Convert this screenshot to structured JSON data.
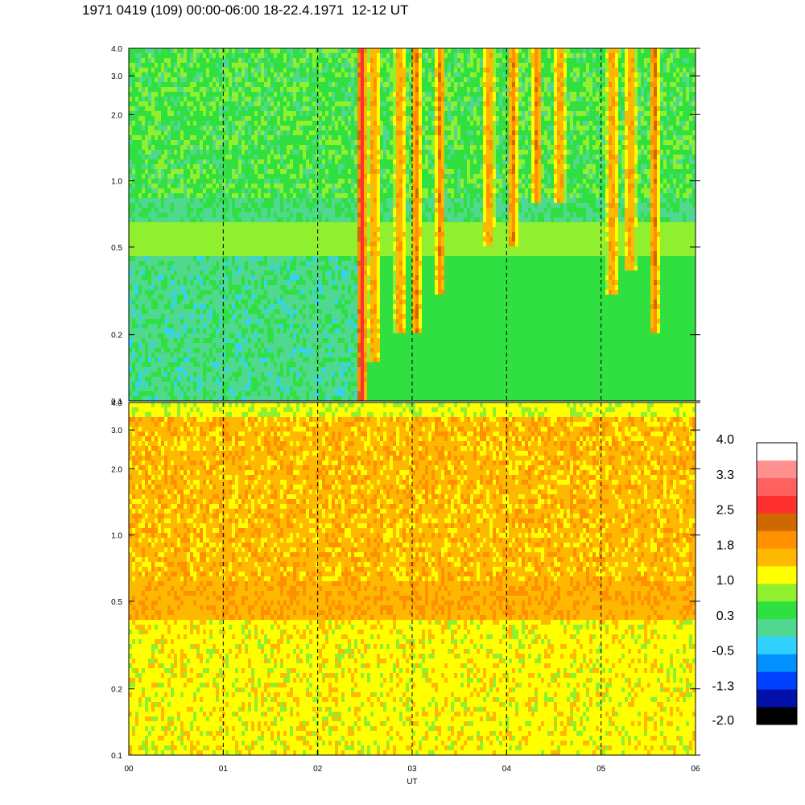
{
  "title": "1971 0419 (109) 00:00-06:00 18-22.4.1971  12-12 UT",
  "colors": {
    "scale": [
      "#000000",
      "#0010a8",
      "#0040ff",
      "#0090ff",
      "#30d0ff",
      "#50d890",
      "#30e040",
      "#90f030",
      "#ffff00",
      "#ffb800",
      "#ff9000",
      "#d06800",
      "#ff3030",
      "#ff6060",
      "#ff9090",
      "#ffffff"
    ],
    "dashed_lines": "#000000",
    "axis": "#000000"
  },
  "chart_data": [
    {
      "type": "heatmap",
      "panel": "top",
      "xlabel": "",
      "ylabel": "",
      "x_range": [
        0,
        6
      ],
      "y_range": [
        0.1,
        4.0
      ],
      "y_scale": "log",
      "y_ticks": [
        {
          "value": 0.1,
          "label": "0.1"
        },
        {
          "value": 0.2,
          "label": "0.2"
        },
        {
          "value": 0.5,
          "label": "0.5"
        },
        {
          "value": 1.0,
          "label": "1.0"
        },
        {
          "value": 2.0,
          "label": "2.0"
        },
        {
          "value": 3.0,
          "label": "3.0"
        },
        {
          "value": 4.0,
          "label": "4.0"
        }
      ],
      "dashed_vertical_lines_at": [
        1,
        2,
        3,
        4,
        5
      ],
      "background_level": "green/cyan",
      "bursts": [
        {
          "x": 2.45,
          "ymin": 0.1,
          "ymax": 4.0,
          "peak_level": "red"
        },
        {
          "x": 2.58,
          "ymin": 0.15,
          "ymax": 4.0,
          "peak_level": "orange"
        },
        {
          "x": 2.85,
          "ymin": 0.2,
          "ymax": 4.0,
          "peak_level": "orange"
        },
        {
          "x": 3.03,
          "ymin": 0.2,
          "ymax": 4.0,
          "peak_level": "orange"
        },
        {
          "x": 3.28,
          "ymin": 0.3,
          "ymax": 4.0,
          "peak_level": "orange"
        },
        {
          "x": 3.8,
          "ymin": 0.5,
          "ymax": 4.0,
          "peak_level": "orange"
        },
        {
          "x": 4.05,
          "ymin": 0.5,
          "ymax": 4.0,
          "peak_level": "orange"
        },
        {
          "x": 4.3,
          "ymin": 0.8,
          "ymax": 4.0,
          "peak_level": "orange"
        },
        {
          "x": 4.55,
          "ymin": 0.8,
          "ymax": 4.0,
          "peak_level": "orange"
        },
        {
          "x": 5.1,
          "ymin": 0.3,
          "ymax": 4.0,
          "peak_level": "orange"
        },
        {
          "x": 5.3,
          "ymin": 0.4,
          "ymax": 4.0,
          "peak_level": "orange"
        },
        {
          "x": 5.55,
          "ymin": 0.2,
          "ymax": 4.0,
          "peak_level": "orange"
        }
      ]
    },
    {
      "type": "heatmap",
      "panel": "bottom",
      "xlabel": "UT",
      "ylabel": "",
      "x_range": [
        0,
        6
      ],
      "x_ticks": [
        {
          "value": 0,
          "label": "00"
        },
        {
          "value": 1,
          "label": "01"
        },
        {
          "value": 2,
          "label": "02"
        },
        {
          "value": 3,
          "label": "03"
        },
        {
          "value": 4,
          "label": "04"
        },
        {
          "value": 5,
          "label": "05"
        },
        {
          "value": 6,
          "label": "06"
        }
      ],
      "y_range": [
        0.1,
        4.0
      ],
      "y_scale": "log",
      "y_ticks": [
        {
          "value": 0.1,
          "label": "0.1"
        },
        {
          "value": 0.2,
          "label": "0.2"
        },
        {
          "value": 0.5,
          "label": "0.5"
        },
        {
          "value": 1.0,
          "label": "1.0"
        },
        {
          "value": 2.0,
          "label": "2.0"
        },
        {
          "value": 3.0,
          "label": "3.0"
        },
        {
          "value": 4.0,
          "label": "4.0"
        }
      ],
      "dashed_vertical_lines_at": [
        1,
        2,
        3,
        4,
        5
      ],
      "background_level": "yellow/orange",
      "band": {
        "ymin": 0.42,
        "ymax": 0.62,
        "level": "orange"
      }
    }
  ],
  "colorbar": {
    "levels": 16,
    "labels": [
      "4.0",
      "3.3",
      "2.5",
      "1.8",
      "1.0",
      "0.3",
      "-0.5",
      "-1.3",
      "-2.0"
    ]
  }
}
